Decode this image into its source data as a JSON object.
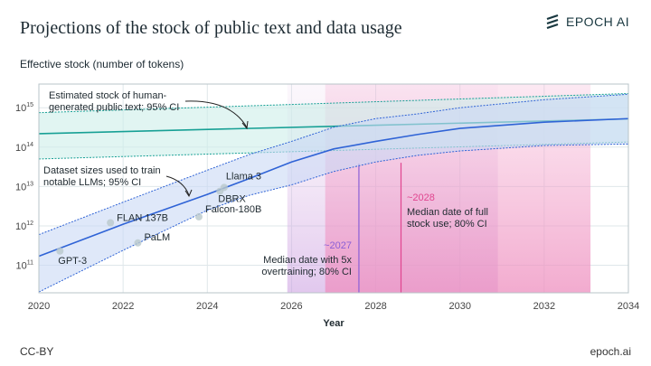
{
  "header": {
    "title": "Projections of the stock of public text and data usage",
    "logo_text": "EPOCH AI"
  },
  "footer": {
    "license": "CC-BY",
    "site": "epoch.ai"
  },
  "colors": {
    "stock": "#17a095",
    "stock_fill": "#cdeeea",
    "dataset": "#2f63d6",
    "dataset_fill": "#c9d8f5",
    "overtrain": "#8a5fd6",
    "fullstock": "#e0458f"
  },
  "chart_data": {
    "type": "line",
    "title": "Projections of the stock of public text and data usage",
    "ylabel": "Effective stock (number of tokens)",
    "xlabel": "Year",
    "xlim": [
      2020,
      2034
    ],
    "ylim": [
      20000000000.0,
      4000000000000000.0
    ],
    "yscale": "log",
    "grid": true,
    "xticks": [
      "2020",
      "2022",
      "2024",
      "2026",
      "2028",
      "2030",
      "2032",
      "2034"
    ],
    "yticks": [
      {
        "exp": "11",
        "value": 100000000000.0
      },
      {
        "exp": "12",
        "value": 1000000000000.0
      },
      {
        "exp": "13",
        "value": 10000000000000.0
      },
      {
        "exp": "14",
        "value": 100000000000000.0
      },
      {
        "exp": "15",
        "value": 1000000000000000.0
      }
    ],
    "stock": {
      "label": [
        "Estimated stock of human-",
        "generated public text; 95% CI"
      ],
      "x": [
        2020,
        2034
      ],
      "median": [
        220000000000000.0,
        520000000000000.0
      ],
      "upper": [
        750000000000000.0,
        2300000000000000.0
      ],
      "lower": [
        50000000000000.0,
        135000000000000.0
      ]
    },
    "dataset": {
      "label": [
        "Dataset sizes used to train",
        "notable LLMs; 95% CI"
      ],
      "x": [
        2020,
        2022,
        2024,
        2025,
        2026,
        2027,
        2028,
        2029,
        2030,
        2032,
        2034
      ],
      "median": [
        170000000000.0,
        1100000000000.0,
        6300000000000.0,
        16000000000000.0,
        42000000000000.0,
        90000000000000.0,
        140000000000000.0,
        210000000000000.0,
        300000000000000.0,
        430000000000000.0,
        530000000000000.0
      ],
      "upper": [
        600000000000.0,
        4000000000000.0,
        26000000000000.0,
        65000000000000.0,
        140000000000000.0,
        320000000000000.0,
        530000000000000.0,
        700000000000000.0,
        1000000000000000.0,
        1600000000000000.0,
        2200000000000000.0
      ],
      "lower": [
        21000000000.0,
        240000000000.0,
        2500000000000.0,
        6000000000000.0,
        11000000000000.0,
        24000000000000.0,
        42000000000000.0,
        62000000000000.0,
        80000000000000.0,
        110000000000000.0,
        120000000000000.0
      ]
    },
    "models": [
      {
        "name": "GPT-3",
        "x": 2020.5,
        "y": 230000000000.0
      },
      {
        "name": "FLAN 137B",
        "x": 2021.7,
        "y": 1200000000000.0
      },
      {
        "name": "PaLM",
        "x": 2022.35,
        "y": 370000000000.0
      },
      {
        "name": "Falcon-180B",
        "x": 2023.8,
        "y": 1700000000000.0
      },
      {
        "name": "DBRX",
        "x": 2024.3,
        "y": 7600000000000.0
      },
      {
        "name": "Llama 3",
        "x": 2024.4,
        "y": 9500000000000.0
      }
    ],
    "overtraining": {
      "median_label": "~2027",
      "text": [
        "Median date with 5x",
        "overtraining; 80% CI"
      ],
      "median": 2027.6,
      "ci": [
        2025.9,
        2030.9
      ]
    },
    "full_stock": {
      "median_label": "~2028",
      "text": [
        "Median date of full",
        "stock use; 80% CI"
      ],
      "median": 2028.6,
      "ci": [
        2026.8,
        2033.1
      ]
    }
  }
}
